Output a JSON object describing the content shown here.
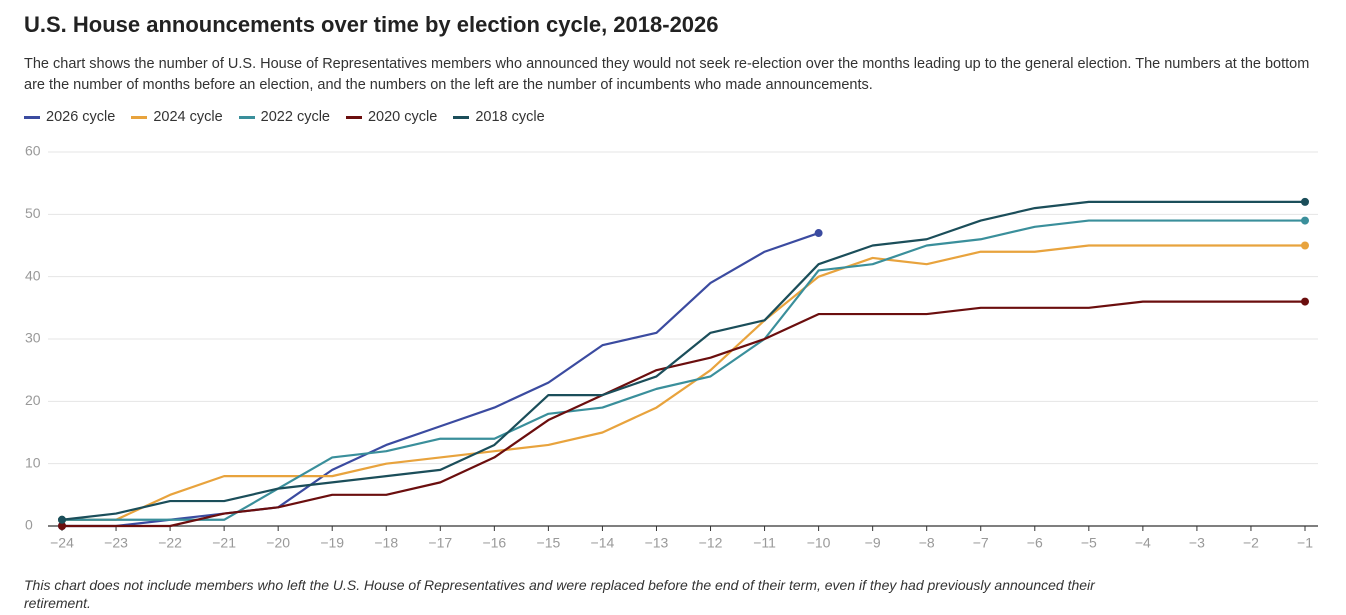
{
  "chart_data": {
    "type": "line",
    "title": "U.S. House announcements over time by election cycle, 2018-2026",
    "subtitle": "The chart shows the number of U.S. House of Representatives members who announced they would not seek re-election over the months leading up to the general election. The numbers at the bottom are the number of months before an election, and the numbers on the left are the number of incumbents who made announcements.",
    "note": "This chart does not include members who left the U.S. House of Representatives and were replaced before the end of their term, even if they had previously announced their retirement.",
    "x": [
      -24,
      -23,
      -22,
      -21,
      -20,
      -19,
      -18,
      -17,
      -16,
      -15,
      -14,
      -13,
      -12,
      -11,
      -10,
      -9,
      -8,
      -7,
      -6,
      -5,
      -4,
      -3,
      -2,
      -1
    ],
    "xlim": [
      -24,
      -1
    ],
    "xticks": [
      {
        "value": -24,
        "label": "−24"
      },
      {
        "value": -23,
        "label": "−23"
      },
      {
        "value": -22,
        "label": "−22"
      },
      {
        "value": -21,
        "label": "−21"
      },
      {
        "value": -20,
        "label": "−20"
      },
      {
        "value": -19,
        "label": "−19"
      },
      {
        "value": -18,
        "label": "−18"
      },
      {
        "value": -17,
        "label": "−17"
      },
      {
        "value": -16,
        "label": "−16"
      },
      {
        "value": -15,
        "label": "−15"
      },
      {
        "value": -14,
        "label": "−14"
      },
      {
        "value": -13,
        "label": "−13"
      },
      {
        "value": -12,
        "label": "−12"
      },
      {
        "value": -11,
        "label": "−11"
      },
      {
        "value": -10,
        "label": "−10"
      },
      {
        "value": -9,
        "label": "−9"
      },
      {
        "value": -8,
        "label": "−8"
      },
      {
        "value": -7,
        "label": "−7"
      },
      {
        "value": -6,
        "label": "−6"
      },
      {
        "value": -5,
        "label": "−5"
      },
      {
        "value": -4,
        "label": "−4"
      },
      {
        "value": -3,
        "label": "−3"
      },
      {
        "value": -2,
        "label": "−2"
      },
      {
        "value": -1,
        "label": "−1"
      }
    ],
    "ylim": [
      0,
      60
    ],
    "yticks": [
      0,
      10,
      20,
      30,
      40,
      50,
      60
    ],
    "grid": true,
    "series": [
      {
        "name": "2026 cycle",
        "color": "#3b4ba0",
        "values": [
          0,
          0,
          1,
          2,
          3,
          9,
          13,
          16,
          19,
          23,
          29,
          31,
          39,
          44,
          47,
          null,
          null,
          null,
          null,
          null,
          null,
          null,
          null,
          null
        ]
      },
      {
        "name": "2024 cycle",
        "color": "#e8a33d",
        "values": [
          1,
          1,
          5,
          8,
          8,
          8,
          10,
          11,
          12,
          13,
          15,
          19,
          25,
          33,
          40,
          43,
          42,
          44,
          44,
          45,
          45,
          45,
          45,
          45
        ]
      },
      {
        "name": "2022 cycle",
        "color": "#3a8f9b",
        "values": [
          1,
          1,
          1,
          1,
          6,
          11,
          12,
          14,
          14,
          18,
          19,
          22,
          24,
          30,
          41,
          42,
          45,
          46,
          48,
          49,
          49,
          49,
          49,
          49
        ]
      },
      {
        "name": "2020 cycle",
        "color": "#6b0e0e",
        "values": [
          0,
          0,
          0,
          2,
          3,
          5,
          5,
          7,
          11,
          17,
          21,
          25,
          27,
          30,
          34,
          34,
          34,
          35,
          35,
          35,
          36,
          36,
          36,
          36
        ]
      },
      {
        "name": "2018 cycle",
        "color": "#1b4e5a",
        "values": [
          1,
          2,
          4,
          4,
          6,
          7,
          8,
          9,
          13,
          21,
          21,
          24,
          31,
          33,
          42,
          45,
          46,
          49,
          51,
          52,
          52,
          52,
          52,
          52
        ]
      }
    ]
  }
}
